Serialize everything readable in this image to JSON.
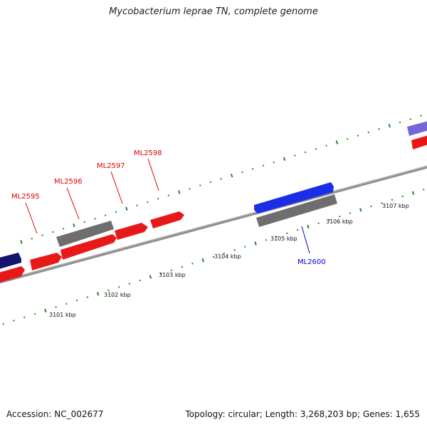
{
  "title": "Mycobacterium leprae TN, complete genome",
  "footer": {
    "accession": "Accession: NC_002677",
    "summary": "Topology: circular; Length: 3,268,203 bp; Genes: 1,655"
  },
  "colors": {
    "forward_cds": "#ee1111",
    "reverse_cds": "#1a2ee8",
    "pseudogene": "#6f6f6f",
    "navy_feature": "#14146e",
    "purple_feature": "#7266d8",
    "backbone": "#8c8c8c",
    "tick": "#1f8a1f",
    "forward_label": "#dd0000",
    "reverse_label": "#0000cc"
  },
  "scale_labels": [
    "3101 kbp",
    "3102 kbp",
    "3103 kbp",
    "3104 kbp",
    "3105 kbp",
    "3106 kbp",
    "3107 kbp"
  ],
  "gene_labels": [
    {
      "name": "ML2595",
      "strand": "forward"
    },
    {
      "name": "ML2596",
      "strand": "forward"
    },
    {
      "name": "ML2597",
      "strand": "forward"
    },
    {
      "name": "ML2598",
      "strand": "forward"
    },
    {
      "name": "ML2600",
      "strand": "reverse"
    }
  ]
}
